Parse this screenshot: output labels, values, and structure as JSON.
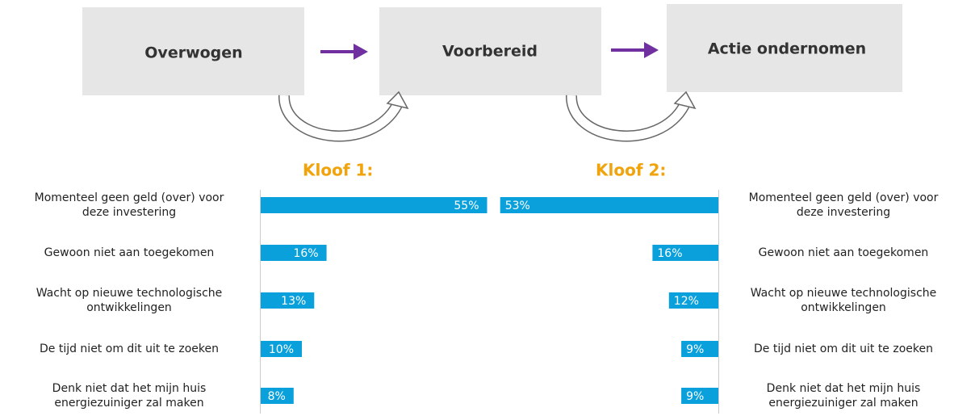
{
  "stages": [
    "Overwogen",
    "Voorbereid",
    "Actie ondernomen"
  ],
  "chart_data": [
    {
      "type": "bar",
      "title": "Kloof 1:",
      "color": "#0aa0dc",
      "direction": "right",
      "categories": [
        "Momenteel geen geld (over)  voor\ndeze investering",
        "Gewoon niet aan toegekomen",
        "Wacht op nieuwe technologische\nontwikkelingen",
        "De tijd niet om dit uit te zoeken",
        "Denk niet dat het mijn huis\nenergiezuiniger zal maken"
      ],
      "values": [
        55,
        16,
        13,
        10,
        8
      ],
      "value_labels": [
        "55%",
        "16%",
        "13%",
        "10%",
        "8%"
      ]
    },
    {
      "type": "bar",
      "title": "Kloof 2:",
      "color": "#0aa0dc",
      "direction": "left",
      "categories": [
        "Momenteel geen geld (over) voor\ndeze investering",
        "Gewoon niet aan toegekomen",
        "Wacht op nieuwe technologische\nontwikkelingen",
        "De tijd niet om dit uit te zoeken",
        "Denk niet dat het mijn huis\nenergiezuiniger zal maken"
      ],
      "values": [
        53,
        16,
        12,
        9,
        9
      ],
      "value_labels": [
        "53%",
        "16%",
        "12%",
        "9%",
        "9%"
      ]
    }
  ]
}
